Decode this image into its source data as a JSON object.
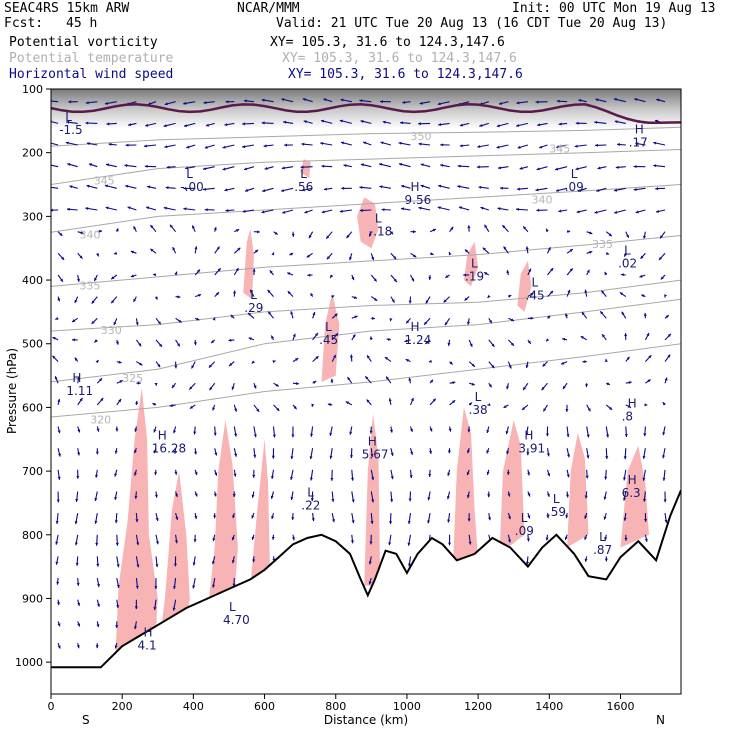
{
  "header": {
    "model": "SEAC4RS 15km ARW",
    "center": "NCAR/MMM",
    "init": "Init: 00 UTC Mon 19 Aug 13",
    "fcst_label": "Fcst:",
    "fcst_value": "45 h",
    "valid": "Valid: 21 UTC Tue 20 Aug 13 (16 CDT Tue 20 Aug 13)",
    "fields": [
      {
        "name": "Potential vorticity",
        "xy": "XY= 105.3, 31.6 to 124.3,147.6",
        "color": "#000000"
      },
      {
        "name": "Potential temperature",
        "xy": "XY= 105.3, 31.6 to 124.3,147.6",
        "color": "#b0b0b0"
      },
      {
        "name": "Horizontal wind speed",
        "xy": "XY= 105.3, 31.6 to 124.3,147.6",
        "color": "#0b0b8a"
      }
    ]
  },
  "chart_data": {
    "type": "cross-section",
    "xlabel": "Distance (km)",
    "ylabel": "Pressure (hPa)",
    "xlim": [
      0,
      1770
    ],
    "ylim": [
      1050,
      100
    ],
    "x_ticks": [
      0,
      200,
      400,
      600,
      800,
      1000,
      1200,
      1400,
      1600
    ],
    "y_ticks": [
      100,
      200,
      300,
      400,
      500,
      600,
      700,
      800,
      900,
      1000
    ],
    "left_end_label": "S",
    "right_end_label": "N",
    "colors": {
      "terrain": "#000000",
      "pv_shading": "#f8b4b4",
      "theta": "#a8a8a8",
      "wind": "#0b0b8a",
      "tropopause": "#5a1a4a"
    },
    "terrain_surface": [
      [
        0,
        1008
      ],
      [
        140,
        1008
      ],
      [
        200,
        975
      ],
      [
        260,
        955
      ],
      [
        320,
        935
      ],
      [
        380,
        915
      ],
      [
        440,
        900
      ],
      [
        500,
        885
      ],
      [
        560,
        870
      ],
      [
        600,
        855
      ],
      [
        640,
        835
      ],
      [
        680,
        815
      ],
      [
        720,
        805
      ],
      [
        760,
        800
      ],
      [
        800,
        810
      ],
      [
        840,
        830
      ],
      [
        870,
        870
      ],
      [
        890,
        895
      ],
      [
        910,
        870
      ],
      [
        940,
        825
      ],
      [
        970,
        830
      ],
      [
        1000,
        860
      ],
      [
        1030,
        830
      ],
      [
        1070,
        805
      ],
      [
        1100,
        815
      ],
      [
        1140,
        840
      ],
      [
        1190,
        830
      ],
      [
        1240,
        805
      ],
      [
        1290,
        820
      ],
      [
        1340,
        850
      ],
      [
        1380,
        820
      ],
      [
        1420,
        800
      ],
      [
        1470,
        830
      ],
      [
        1510,
        865
      ],
      [
        1560,
        870
      ],
      [
        1600,
        835
      ],
      [
        1650,
        810
      ],
      [
        1700,
        840
      ],
      [
        1740,
        770
      ],
      [
        1770,
        730
      ]
    ],
    "theta_contours": [
      {
        "label": "325",
        "points": [
          [
            0,
            560
          ],
          [
            300,
            540
          ],
          [
            600,
            500
          ],
          [
            900,
            480
          ],
          [
            1200,
            470
          ],
          [
            1500,
            450
          ],
          [
            1770,
            430
          ]
        ]
      },
      {
        "label": "330",
        "points": [
          [
            0,
            480
          ],
          [
            300,
            470
          ],
          [
            600,
            450
          ],
          [
            900,
            440
          ],
          [
            1200,
            435
          ],
          [
            1500,
            420
          ],
          [
            1770,
            400
          ]
        ]
      },
      {
        "label": "335",
        "points": [
          [
            0,
            410
          ],
          [
            300,
            395
          ],
          [
            600,
            380
          ],
          [
            900,
            370
          ],
          [
            1200,
            360
          ],
          [
            1500,
            345
          ],
          [
            1770,
            330
          ]
        ]
      },
      {
        "label": "340",
        "points": [
          [
            0,
            325
          ],
          [
            300,
            300
          ],
          [
            600,
            290
          ],
          [
            900,
            280
          ],
          [
            1200,
            270
          ],
          [
            1500,
            260
          ],
          [
            1770,
            250
          ]
        ]
      },
      {
        "label": "345",
        "points": [
          [
            0,
            250
          ],
          [
            300,
            225
          ],
          [
            600,
            215
          ],
          [
            900,
            210
          ],
          [
            1200,
            205
          ],
          [
            1500,
            200
          ],
          [
            1770,
            195
          ]
        ]
      },
      {
        "label": "350",
        "points": [
          [
            0,
            190
          ],
          [
            300,
            180
          ],
          [
            600,
            175
          ],
          [
            900,
            170
          ],
          [
            1200,
            168
          ],
          [
            1500,
            165
          ],
          [
            1770,
            160
          ]
        ]
      },
      {
        "label": "320",
        "points": [
          [
            0,
            615
          ],
          [
            300,
            600
          ],
          [
            600,
            575
          ],
          [
            900,
            560
          ],
          [
            1200,
            540
          ],
          [
            1500,
            520
          ],
          [
            1770,
            500
          ]
        ]
      }
    ],
    "pv_regions": [
      [
        [
          180,
          1000
        ],
        [
          190,
          880
        ],
        [
          215,
          780
        ],
        [
          235,
          650
        ],
        [
          255,
          570
        ],
        [
          270,
          650
        ],
        [
          275,
          800
        ],
        [
          300,
          900
        ],
        [
          290,
          1000
        ]
      ],
      [
        [
          300,
          990
        ],
        [
          320,
          900
        ],
        [
          340,
          760
        ],
        [
          360,
          700
        ],
        [
          380,
          800
        ],
        [
          390,
          900
        ],
        [
          370,
          990
        ]
      ],
      [
        [
          440,
          920
        ],
        [
          460,
          820
        ],
        [
          470,
          700
        ],
        [
          490,
          620
        ],
        [
          510,
          690
        ],
        [
          525,
          820
        ],
        [
          515,
          900
        ]
      ],
      [
        [
          560,
          880
        ],
        [
          580,
          760
        ],
        [
          600,
          650
        ],
        [
          610,
          720
        ],
        [
          615,
          850
        ]
      ],
      [
        [
          880,
          880
        ],
        [
          890,
          700
        ],
        [
          905,
          610
        ],
        [
          920,
          680
        ],
        [
          925,
          880
        ]
      ],
      [
        [
          1130,
          840
        ],
        [
          1140,
          700
        ],
        [
          1160,
          600
        ],
        [
          1180,
          640
        ],
        [
          1190,
          760
        ],
        [
          1200,
          840
        ]
      ],
      [
        [
          1260,
          830
        ],
        [
          1270,
          700
        ],
        [
          1300,
          620
        ],
        [
          1320,
          660
        ],
        [
          1330,
          800
        ]
      ],
      [
        [
          1450,
          820
        ],
        [
          1460,
          700
        ],
        [
          1480,
          640
        ],
        [
          1500,
          680
        ],
        [
          1510,
          800
        ]
      ],
      [
        [
          1600,
          820
        ],
        [
          1620,
          700
        ],
        [
          1650,
          660
        ],
        [
          1670,
          720
        ],
        [
          1680,
          800
        ]
      ],
      [
        [
          540,
          420
        ],
        [
          550,
          340
        ],
        [
          560,
          320
        ],
        [
          570,
          360
        ],
        [
          565,
          430
        ]
      ],
      [
        [
          760,
          560
        ],
        [
          770,
          470
        ],
        [
          790,
          420
        ],
        [
          810,
          470
        ],
        [
          800,
          550
        ]
      ],
      [
        [
          860,
          300
        ],
        [
          880,
          270
        ],
        [
          910,
          280
        ],
        [
          920,
          320
        ],
        [
          900,
          350
        ],
        [
          870,
          340
        ]
      ],
      [
        [
          1160,
          400
        ],
        [
          1170,
          360
        ],
        [
          1190,
          340
        ],
        [
          1200,
          380
        ],
        [
          1180,
          410
        ]
      ],
      [
        [
          1310,
          440
        ],
        [
          1320,
          390
        ],
        [
          1340,
          370
        ],
        [
          1350,
          410
        ],
        [
          1330,
          450
        ]
      ],
      [
        [
          700,
          230
        ],
        [
          710,
          210
        ],
        [
          730,
          215
        ],
        [
          725,
          240
        ]
      ]
    ],
    "hl_markers": [
      {
        "letter": "H",
        "value": "1.11",
        "x": 60,
        "p": 560
      },
      {
        "letter": "H",
        "value": "16.28",
        "x": 300,
        "p": 650
      },
      {
        "letter": "L",
        "value": ".29",
        "x": 560,
        "p": 430
      },
      {
        "letter": "L",
        "value": ".56",
        "x": 700,
        "p": 240
      },
      {
        "letter": "L",
        "value": ".45",
        "x": 770,
        "p": 480
      },
      {
        "letter": "L",
        "value": ".22",
        "x": 720,
        "p": 740
      },
      {
        "letter": "H",
        "value": "5.67",
        "x": 890,
        "p": 660
      },
      {
        "letter": "L",
        "value": "-.18",
        "x": 910,
        "p": 310
      },
      {
        "letter": "H",
        "value": "9.56",
        "x": 1010,
        "p": 260
      },
      {
        "letter": "H",
        "value": "1.24",
        "x": 1010,
        "p": 480
      },
      {
        "letter": "L",
        "value": ".19",
        "x": 1180,
        "p": 380
      },
      {
        "letter": "L",
        "value": ".38",
        "x": 1190,
        "p": 590
      },
      {
        "letter": "L",
        "value": ".45",
        "x": 1350,
        "p": 410
      },
      {
        "letter": "H",
        "value": "3.91",
        "x": 1330,
        "p": 650
      },
      {
        "letter": "L",
        "value": ".59",
        "x": 1410,
        "p": 750
      },
      {
        "letter": "L",
        "value": ".09",
        "x": 1460,
        "p": 240
      },
      {
        "letter": "L",
        "value": ".02",
        "x": 1610,
        "p": 360
      },
      {
        "letter": "H",
        "value": ".8",
        "x": 1620,
        "p": 600
      },
      {
        "letter": "H",
        "value": "6.3",
        "x": 1620,
        "p": 720
      },
      {
        "letter": "L",
        "value": "-1.5",
        "x": 40,
        "p": 150
      },
      {
        "letter": "L",
        "value": "-.00",
        "x": 380,
        "p": 240
      },
      {
        "letter": "L",
        "value": "4.70",
        "x": 500,
        "p": 920
      },
      {
        "letter": "H",
        "value": "4.1",
        "x": 260,
        "p": 960
      },
      {
        "letter": "L",
        "value": ".87",
        "x": 1540,
        "p": 810
      },
      {
        "letter": "H",
        "value": ".17",
        "x": 1640,
        "p": 170
      },
      {
        "letter": "L",
        "value": ".09",
        "x": 1320,
        "p": 780
      }
    ],
    "theta_label_spots": [
      {
        "label": "350",
        "x": 1010,
        "p": 180
      },
      {
        "label": "345",
        "x": 120,
        "p": 250
      },
      {
        "label": "340",
        "x": 80,
        "p": 335
      },
      {
        "label": "335",
        "x": 80,
        "p": 415
      },
      {
        "label": "330",
        "x": 140,
        "p": 485
      },
      {
        "label": "325",
        "x": 200,
        "p": 560
      },
      {
        "label": "320",
        "x": 110,
        "p": 625
      },
      {
        "label": "335",
        "x": 1520,
        "p": 350
      },
      {
        "label": "340",
        "x": 1350,
        "p": 280
      },
      {
        "label": "345",
        "x": 1400,
        "p": 200
      }
    ]
  }
}
